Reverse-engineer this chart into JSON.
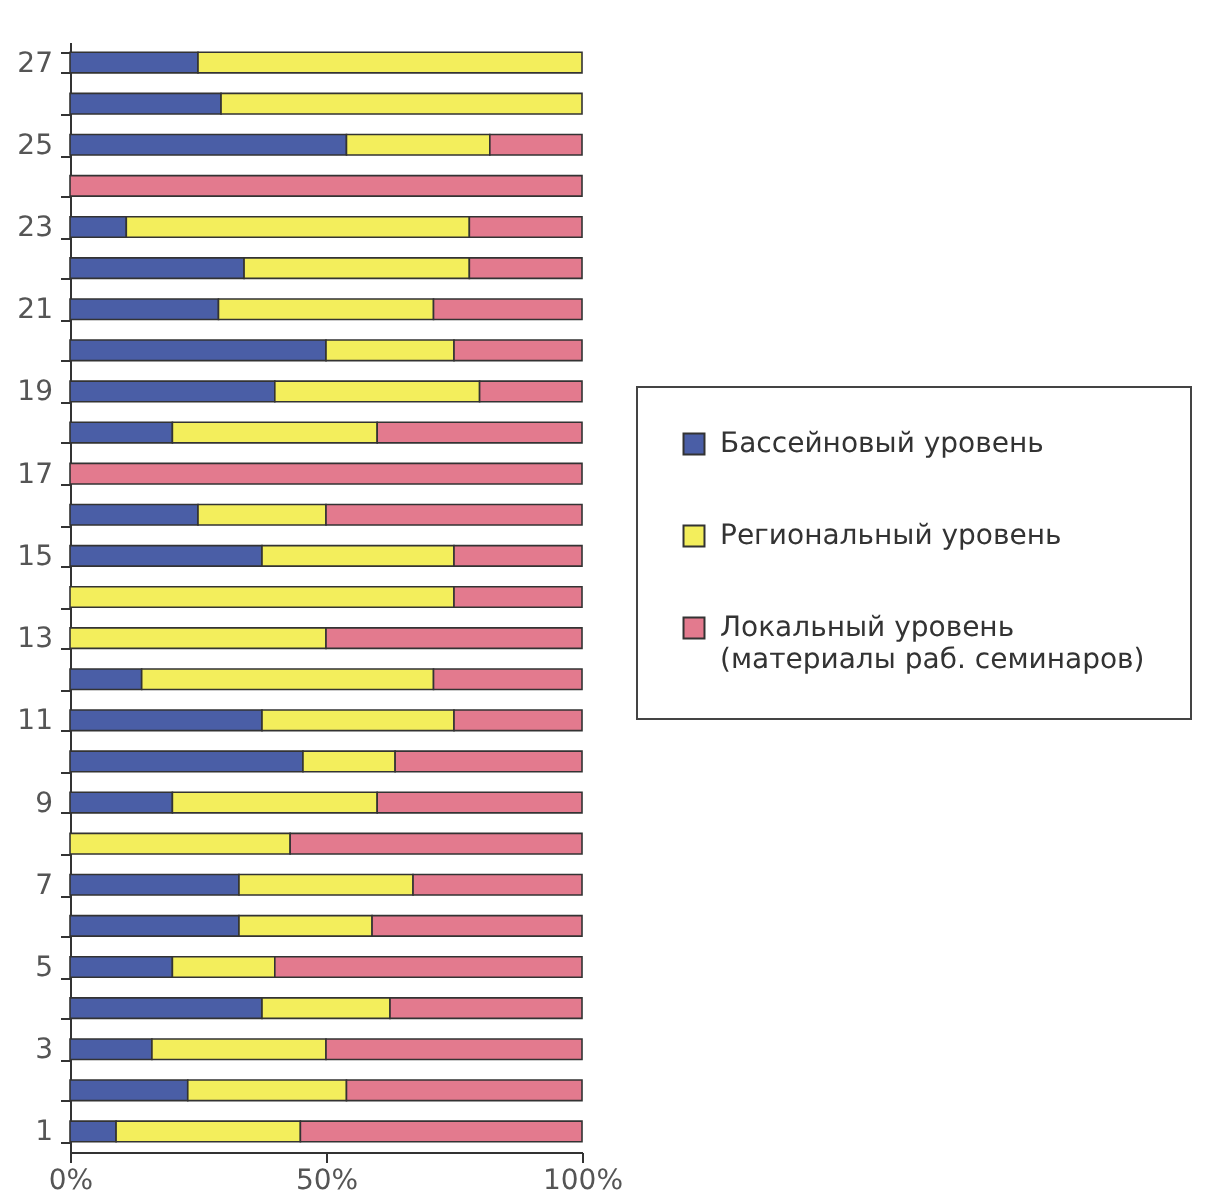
{
  "chart_data": {
    "type": "bar",
    "orientation": "horizontal",
    "stacked": true,
    "categories": [
      "27",
      null,
      "25",
      null,
      "23",
      null,
      "21",
      null,
      "19",
      null,
      "17",
      null,
      "15",
      null,
      "13",
      null,
      "11",
      null,
      "9",
      null,
      "7",
      null,
      "5",
      null,
      "3",
      null,
      "1"
    ],
    "series": [
      {
        "name": "Бассейновый уровень",
        "color": "#4a5ea6",
        "values": [
          25,
          29.5,
          54,
          0,
          11,
          34,
          29,
          50,
          40,
          20,
          0,
          25,
          37.5,
          0,
          0,
          14,
          37.5,
          45.5,
          20,
          0,
          33,
          33,
          20,
          37.5,
          16,
          23,
          9
        ]
      },
      {
        "name": "Региональный уровень",
        "color": "#f3ee5c",
        "values": [
          75,
          70.5,
          28,
          0,
          67,
          44,
          42,
          25,
          40,
          40,
          0,
          25,
          37.5,
          75,
          50,
          57,
          37.5,
          18,
          40,
          43,
          34,
          26,
          20,
          25,
          34,
          31,
          36
        ]
      },
      {
        "name": "Локальный уровень\n(материалы раб. семинаров)",
        "color": "#e37a8e",
        "values": [
          0,
          0,
          18,
          100,
          22,
          22,
          29,
          25,
          20,
          40,
          100,
          50,
          25,
          25,
          50,
          29,
          25,
          36.5,
          40,
          57,
          33,
          41,
          60,
          37.5,
          50,
          46,
          55
        ]
      }
    ],
    "xlim": [
      0,
      100
    ],
    "xticks": [
      {
        "value": 0,
        "label": "0%"
      },
      {
        "value": 50,
        "label": "50%"
      },
      {
        "value": 100,
        "label": "100%"
      }
    ],
    "grid": false,
    "legend": "right"
  }
}
